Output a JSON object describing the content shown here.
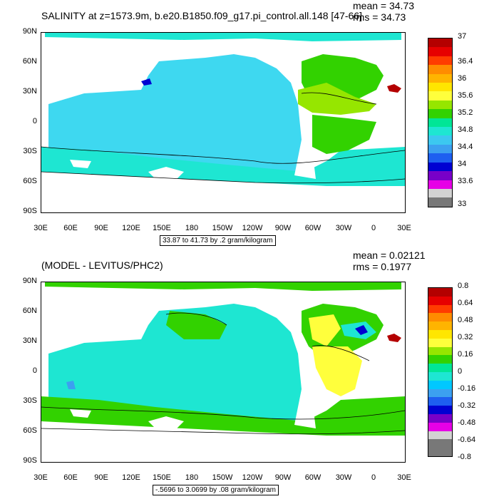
{
  "top": {
    "title": "SALINITY at z=1573.9m, b.e20.B1850.f09_g17.pi_control.all.148 [47-66]",
    "mean": "mean = 34.73",
    "rms": "rms = 34.73",
    "range_label": "33.87 to 41.73 by .2 gram/kilogram",
    "colorbar_labels": [
      "37",
      "36.4",
      "36",
      "35.6",
      "35.2",
      "34.8",
      "34.4",
      "34",
      "33.6",
      "33"
    ],
    "colorbar_colors": [
      "#b40000",
      "#e60000",
      "#ff3c00",
      "#ff8c00",
      "#ffb400",
      "#ffe600",
      "#ffff3c",
      "#96e600",
      "#32d200",
      "#00e696",
      "#1ee6d2",
      "#3cc8f0",
      "#3ca0f0",
      "#1e5ff0",
      "#0000d2",
      "#7800c8",
      "#e600e6",
      "#d2d2d2",
      "#787878"
    ]
  },
  "bottom": {
    "title": "(MODEL - LEVITUS/PHC2)",
    "mean": "mean = 0.02121",
    "rms": "rms = 0.1977",
    "range_label": "-.5696 to 3.0699 by .08 gram/kilogram",
    "colorbar_labels": [
      "0.8",
      "0.64",
      "0.48",
      "0.32",
      "0.16",
      "0",
      "-0.16",
      "-0.32",
      "-0.48",
      "-0.64",
      "-0.8"
    ],
    "colorbar_colors": [
      "#b40000",
      "#e60000",
      "#ff3c00",
      "#ff8c00",
      "#ffb400",
      "#ffe600",
      "#ffff3c",
      "#96e600",
      "#32d200",
      "#00e696",
      "#1ee6d2",
      "#00c8ff",
      "#3ca0f0",
      "#1e5ff0",
      "#0000d2",
      "#7800c8",
      "#e600e6",
      "#d2d2d2",
      "#787878",
      "#787878"
    ]
  },
  "axes": {
    "y_ticks": [
      "90N",
      "60N",
      "30N",
      "0",
      "30S",
      "60S",
      "90S"
    ],
    "x_ticks": [
      "30E",
      "60E",
      "90E",
      "120E",
      "150E",
      "180",
      "150W",
      "120W",
      "90W",
      "60W",
      "30W",
      "0",
      "30E"
    ]
  },
  "chart_data": [
    {
      "type": "heatmap",
      "title": "SALINITY at z=1573.9m, b.e20.B1850.f09_g17.pi_control.all.148 [47-66]",
      "variable": "salinity",
      "units": "gram/kilogram",
      "mean": 34.73,
      "rms": 34.73,
      "contour_min": 33.87,
      "contour_max": 41.73,
      "contour_interval": 0.2,
      "colorbar_levels": [
        33,
        33.6,
        34,
        34.4,
        34.8,
        35.2,
        35.6,
        36,
        36.4,
        37
      ],
      "xlim": [
        "30E",
        "30E"
      ],
      "ylim": [
        "90S",
        "90N"
      ]
    },
    {
      "type": "heatmap",
      "title": "(MODEL - LEVITUS/PHC2)",
      "variable": "salinity difference",
      "units": "gram/kilogram",
      "mean": 0.02121,
      "rms": 0.1977,
      "contour_min": -0.5696,
      "contour_max": 3.0699,
      "contour_interval": 0.08,
      "colorbar_levels": [
        -0.8,
        -0.64,
        -0.48,
        -0.32,
        -0.16,
        0,
        0.16,
        0.32,
        0.48,
        0.64,
        0.8
      ],
      "xlim": [
        "30E",
        "30E"
      ],
      "ylim": [
        "90S",
        "90N"
      ]
    }
  ]
}
